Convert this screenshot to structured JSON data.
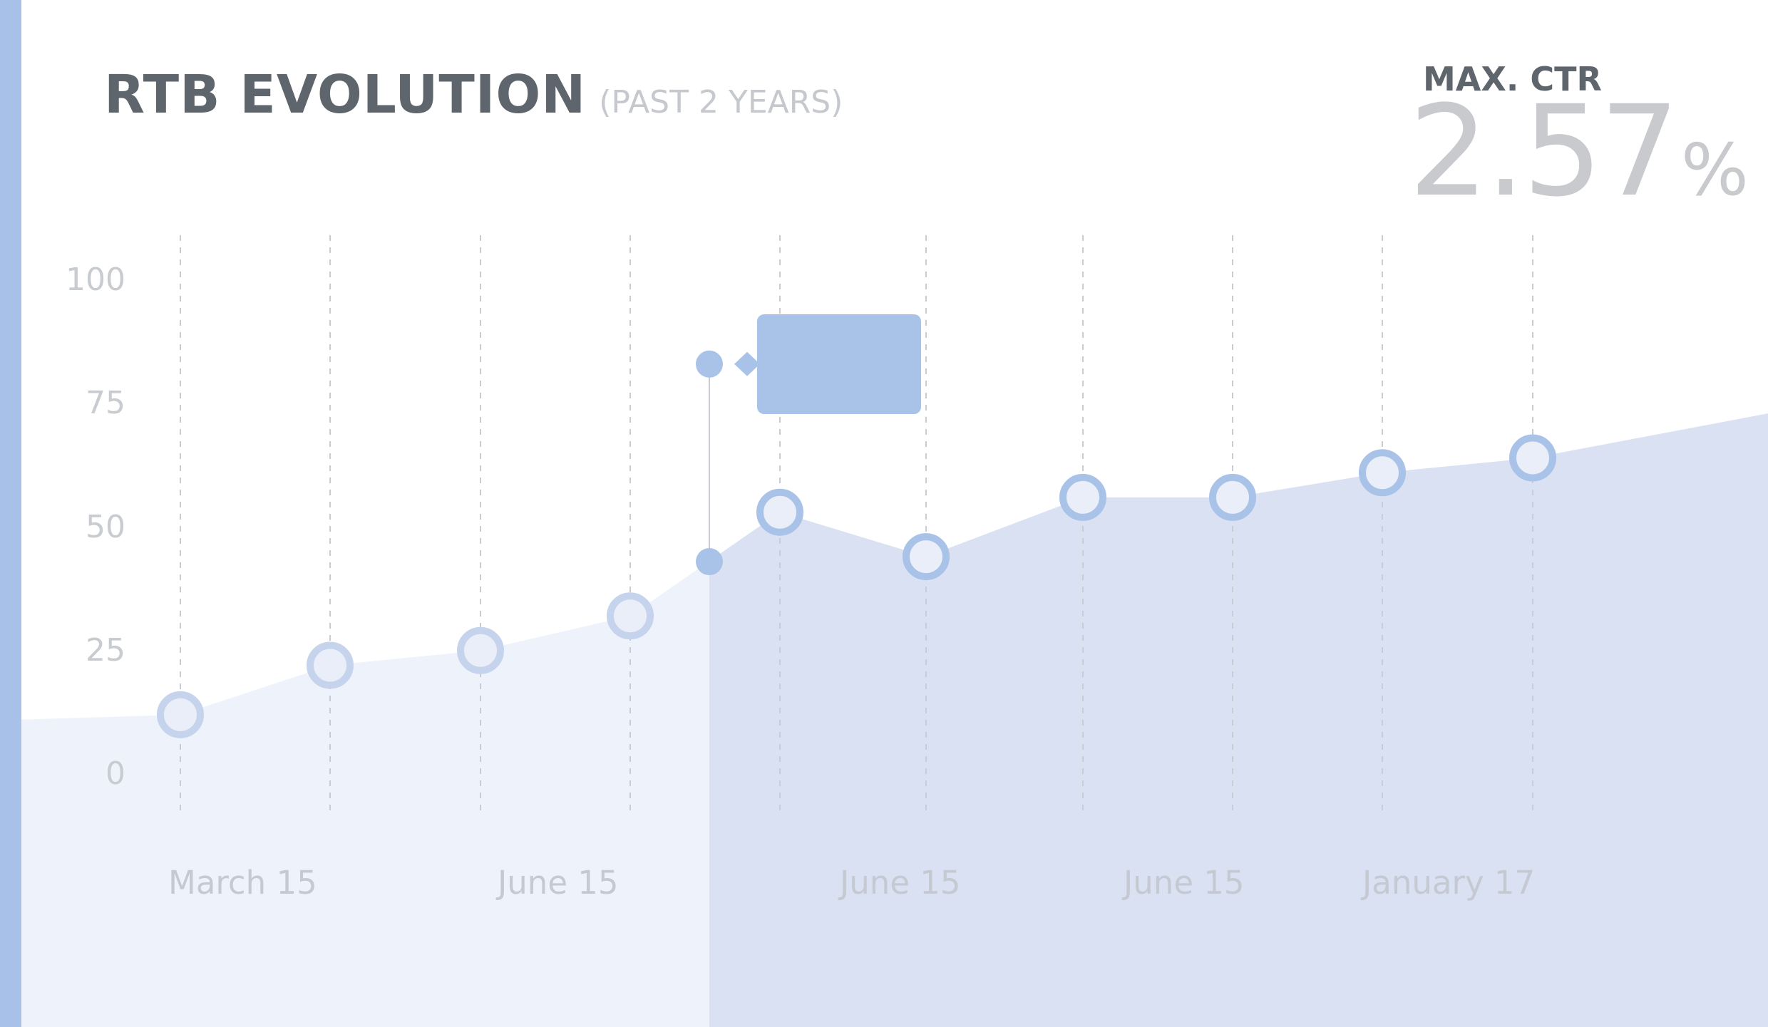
{
  "title": "RTB EVOLUTION",
  "subtitle": "(PAST 2 YEARS)",
  "kpi": {
    "label": "MAX. CTR",
    "value": "2.57",
    "unit": "%"
  },
  "colors": {
    "accent": "#a8c1e8",
    "area_light": "#eef2fb",
    "area_dark": "#d9e1f2",
    "marker_light": "#c5d4ec",
    "marker_dark": "#a9c2e8",
    "marker_fill": "#e9eef8",
    "title": "#5f656c",
    "muted_text": "#c5c8cd"
  },
  "chart_data": {
    "type": "area",
    "title": "RTB EVOLUTION",
    "subtitle": "(PAST 2 YEARS)",
    "xlabel": "",
    "ylabel": "",
    "ylim": [
      0,
      100
    ],
    "yticks": [
      0,
      25,
      50,
      75,
      100
    ],
    "xtick_labels": [
      "March 15",
      "June 15",
      "June 15",
      "June 15",
      "January 17"
    ],
    "grid": "vertical dashed lines at each data point",
    "legend": "none",
    "series": [
      {
        "values": [
          12,
          22,
          25,
          32,
          53,
          44,
          56,
          56,
          61,
          64
        ]
      }
    ],
    "edges": {
      "start_value": 11,
      "end_value": 73
    },
    "highlight": {
      "marker_low": 43,
      "marker_high": 83,
      "tooltip_text": ""
    }
  }
}
